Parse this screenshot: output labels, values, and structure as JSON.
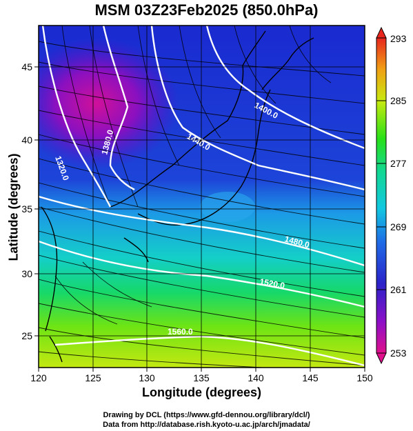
{
  "title": "MSM 03Z23Feb2025 (850.0hPa)",
  "axes": {
    "xlabel": "Longitude (degrees)",
    "ylabel": "Latitude  (degrees)",
    "x_ticks": [
      "120",
      "125",
      "130",
      "135",
      "140",
      "145",
      "150"
    ],
    "y_ticks": [
      "25",
      "30",
      "35",
      "40",
      "45"
    ],
    "xlim": [
      120,
      150
    ],
    "ylim": [
      22.5,
      47.6
    ]
  },
  "colorbar": {
    "ticks": [
      "293",
      "285",
      "277",
      "269",
      "261",
      "253"
    ],
    "range": [
      253,
      293
    ],
    "colors": [
      "#e0108c",
      "#8c0fc8",
      "#1f26c8",
      "#1f78e6",
      "#13c8dc",
      "#12d882",
      "#30e012",
      "#d8ea10",
      "#f4c412",
      "#f07016",
      "#e8261e"
    ]
  },
  "contours": {
    "labels": [
      "1320.0",
      "1380.0",
      "1440.0",
      "1400.0",
      "1480.0",
      "1520.0",
      "1560.0"
    ],
    "color": "#ffffff"
  },
  "credits": {
    "line1": "Drawing by DCL (https://www.gfd-dennou.org/library/dcl/)",
    "line2": "Data from http://database.rish.kyoto-u.ac.jp/arch/jmadata/"
  }
}
